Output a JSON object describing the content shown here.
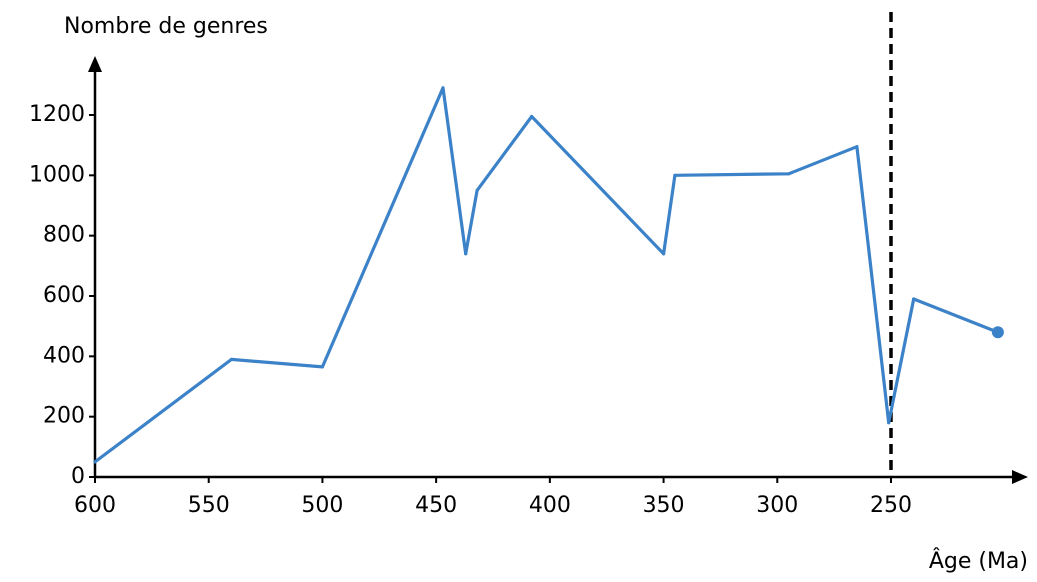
{
  "chart_data": {
    "type": "line",
    "ylabel": "Nombre de genres",
    "xlabel": "Âge (Ma)",
    "x_reversed": true,
    "xlim": [
      600,
      200
    ],
    "ylim": [
      0,
      1300
    ],
    "x_ticks": [
      600,
      550,
      500,
      450,
      400,
      350,
      300,
      250
    ],
    "y_ticks": [
      0,
      200,
      400,
      600,
      800,
      1000,
      1200
    ],
    "series": [
      {
        "color": "#3b82c8",
        "points": [
          {
            "x": 600,
            "y": 50
          },
          {
            "x": 540,
            "y": 390
          },
          {
            "x": 500,
            "y": 365
          },
          {
            "x": 447,
            "y": 1290
          },
          {
            "x": 437,
            "y": 740
          },
          {
            "x": 432,
            "y": 950
          },
          {
            "x": 408,
            "y": 1195
          },
          {
            "x": 350,
            "y": 740
          },
          {
            "x": 345,
            "y": 1000
          },
          {
            "x": 295,
            "y": 1005
          },
          {
            "x": 265,
            "y": 1095
          },
          {
            "x": 251,
            "y": 180
          },
          {
            "x": 240,
            "y": 590
          },
          {
            "x": 203,
            "y": 480
          }
        ]
      }
    ],
    "marker_line": {
      "x": 250,
      "style": "dashed",
      "color": "#000000"
    },
    "end_marker": {
      "x": 203,
      "y": 480
    }
  }
}
